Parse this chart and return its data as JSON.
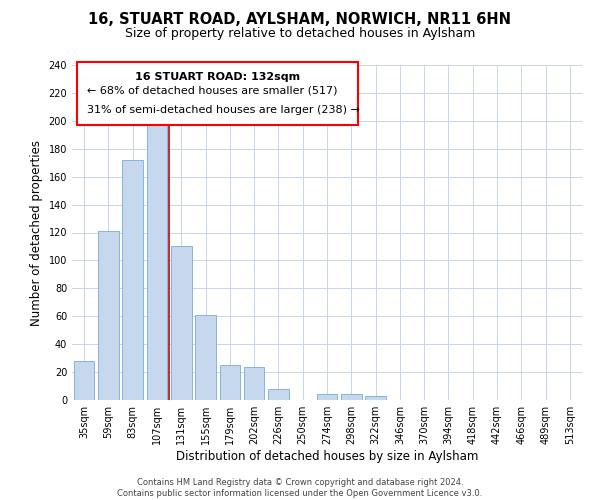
{
  "title": "16, STUART ROAD, AYLSHAM, NORWICH, NR11 6HN",
  "subtitle": "Size of property relative to detached houses in Aylsham",
  "xlabel": "Distribution of detached houses by size in Aylsham",
  "ylabel": "Number of detached properties",
  "bar_color": "#c5d8ee",
  "bar_edge_color": "#7aadd4",
  "highlight_color": "#cc0000",
  "background_color": "#ffffff",
  "grid_color": "#c8d4e8",
  "categories": [
    "35sqm",
    "59sqm",
    "83sqm",
    "107sqm",
    "131sqm",
    "155sqm",
    "179sqm",
    "202sqm",
    "226sqm",
    "250sqm",
    "274sqm",
    "298sqm",
    "322sqm",
    "346sqm",
    "370sqm",
    "394sqm",
    "418sqm",
    "442sqm",
    "466sqm",
    "489sqm",
    "513sqm"
  ],
  "values": [
    28,
    121,
    172,
    197,
    110,
    61,
    25,
    24,
    8,
    0,
    4,
    4,
    3,
    0,
    0,
    0,
    0,
    0,
    0,
    0,
    0
  ],
  "ylim": [
    0,
    240
  ],
  "yticks": [
    0,
    20,
    40,
    60,
    80,
    100,
    120,
    140,
    160,
    180,
    200,
    220,
    240
  ],
  "annotation_text_line1": "16 STUART ROAD: 132sqm",
  "annotation_text_line2": "← 68% of detached houses are smaller (517)",
  "annotation_text_line3": "31% of semi-detached houses are larger (238) →",
  "footer_line1": "Contains HM Land Registry data © Crown copyright and database right 2024.",
  "footer_line2": "Contains public sector information licensed under the Open Government Licence v3.0.",
  "title_fontsize": 10.5,
  "subtitle_fontsize": 9,
  "axis_label_fontsize": 8.5,
  "tick_fontsize": 7,
  "annotation_fontsize": 8,
  "footer_fontsize": 6
}
